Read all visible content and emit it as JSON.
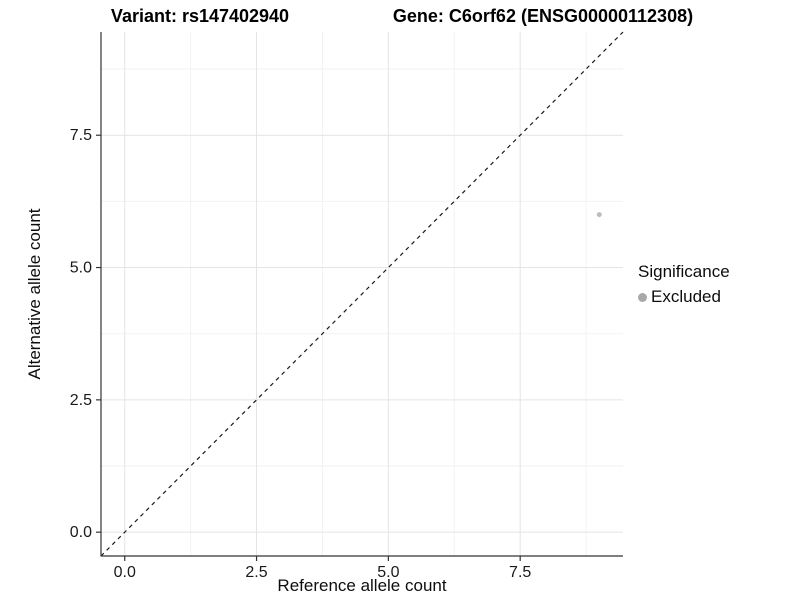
{
  "title": {
    "variant": "Variant: rs147402940",
    "gene": "Gene: C6orf62 (ENSG00000112308)"
  },
  "axes": {
    "x_label": "Reference allele count",
    "y_label": "Alternative allele count"
  },
  "legend": {
    "title": "Significance",
    "items": [
      {
        "label": "Excluded",
        "color": "#a8a8a8"
      }
    ]
  },
  "colors": {
    "background": "#ffffff",
    "grid_major": "#e4e4e4",
    "grid_minor": "#f2f2f2",
    "axis_line": "#333333",
    "tick_mark": "#333333",
    "tick_label": "#1a1a1a",
    "reference_line": "#1a1a1a",
    "point": "#bdbdbd"
  },
  "chart_data": {
    "type": "scatter",
    "title": "Variant: rs147402940   Gene: C6orf62 (ENSG00000112308)",
    "xlabel": "Reference allele count",
    "ylabel": "Alternative allele count",
    "xlim": [
      -0.45,
      9.45
    ],
    "ylim": [
      -0.45,
      9.45
    ],
    "x_ticks": {
      "values": [
        0,
        2.5,
        5,
        7.5
      ],
      "labels": [
        "0.0",
        "2.5",
        "5.0",
        "7.5"
      ]
    },
    "y_ticks": {
      "values": [
        0,
        2.5,
        5,
        7.5
      ],
      "labels": [
        "0.0",
        "2.5",
        "5.0",
        "7.5"
      ]
    },
    "minor_ticks": [
      1.25,
      3.75,
      6.25,
      8.75
    ],
    "grid": true,
    "legend_position": "right",
    "reference_line": {
      "style": "dashed",
      "from": [
        -0.45,
        -0.45
      ],
      "to": [
        9.45,
        9.45
      ],
      "meaning": "identity y = x"
    },
    "series": [
      {
        "name": "Excluded",
        "color": "#bdbdbd",
        "points": [
          {
            "x": 9,
            "y": 6
          }
        ]
      }
    ]
  }
}
